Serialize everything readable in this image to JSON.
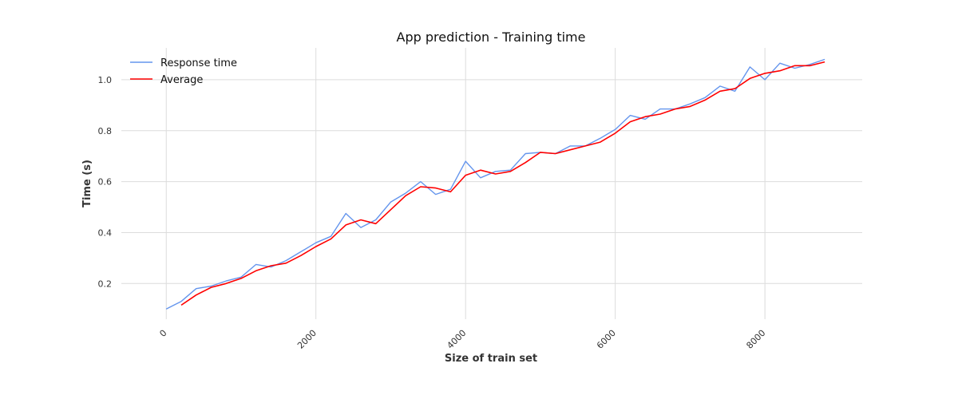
{
  "chart_data": {
    "type": "line",
    "title": "App prediction - Training time",
    "xlabel": "Size of train set",
    "ylabel": "Time (s)",
    "xlim": [
      -600,
      9300
    ],
    "ylim": [
      0.06,
      1.125
    ],
    "xticks": [
      0,
      2000,
      4000,
      6000,
      8000
    ],
    "yticks": [
      0.2,
      0.4,
      0.6,
      0.8,
      1.0
    ],
    "xtick_labels": [
      "0",
      "2000",
      "4000",
      "6000",
      "8000"
    ],
    "ytick_labels": [
      "0.2",
      "0.4",
      "0.6",
      "0.8",
      "1.0"
    ],
    "grid": true,
    "legend_position": "top-left",
    "series": [
      {
        "name": "Response time",
        "color": "#6495ed",
        "x": [
          0,
          200,
          400,
          600,
          800,
          1000,
          1200,
          1400,
          1600,
          1800,
          2000,
          2200,
          2400,
          2600,
          2800,
          3000,
          3200,
          3400,
          3600,
          3800,
          4000,
          4200,
          4400,
          4600,
          4800,
          5000,
          5200,
          5400,
          5600,
          5800,
          6000,
          6200,
          6400,
          6600,
          6800,
          7000,
          7200,
          7400,
          7600,
          7800,
          8000,
          8200,
          8400,
          8600,
          8800
        ],
        "values": [
          0.1,
          0.13,
          0.18,
          0.19,
          0.21,
          0.225,
          0.275,
          0.265,
          0.29,
          0.325,
          0.36,
          0.385,
          0.475,
          0.42,
          0.45,
          0.52,
          0.555,
          0.6,
          0.55,
          0.57,
          0.68,
          0.615,
          0.64,
          0.645,
          0.71,
          0.715,
          0.71,
          0.74,
          0.74,
          0.77,
          0.805,
          0.86,
          0.845,
          0.885,
          0.885,
          0.905,
          0.93,
          0.975,
          0.955,
          1.05,
          1.0,
          1.065,
          1.045,
          1.06,
          1.08
        ]
      },
      {
        "name": "Average",
        "color": "#ff0000",
        "x": [
          200,
          400,
          600,
          800,
          1000,
          1200,
          1400,
          1600,
          1800,
          2000,
          2200,
          2400,
          2600,
          2800,
          3000,
          3200,
          3400,
          3600,
          3800,
          4000,
          4200,
          4400,
          4600,
          4800,
          5000,
          5200,
          5400,
          5600,
          5800,
          6000,
          6200,
          6400,
          6600,
          6800,
          7000,
          7200,
          7400,
          7600,
          7800,
          8000,
          8200,
          8400,
          8600,
          8800
        ],
        "values": [
          0.115,
          0.155,
          0.185,
          0.2,
          0.22,
          0.25,
          0.27,
          0.28,
          0.31,
          0.345,
          0.375,
          0.43,
          0.45,
          0.435,
          0.49,
          0.545,
          0.58,
          0.575,
          0.56,
          0.625,
          0.645,
          0.63,
          0.64,
          0.675,
          0.715,
          0.71,
          0.725,
          0.74,
          0.755,
          0.79,
          0.835,
          0.855,
          0.865,
          0.885,
          0.895,
          0.92,
          0.955,
          0.965,
          1.005,
          1.025,
          1.035,
          1.055,
          1.055,
          1.07
        ]
      }
    ]
  }
}
